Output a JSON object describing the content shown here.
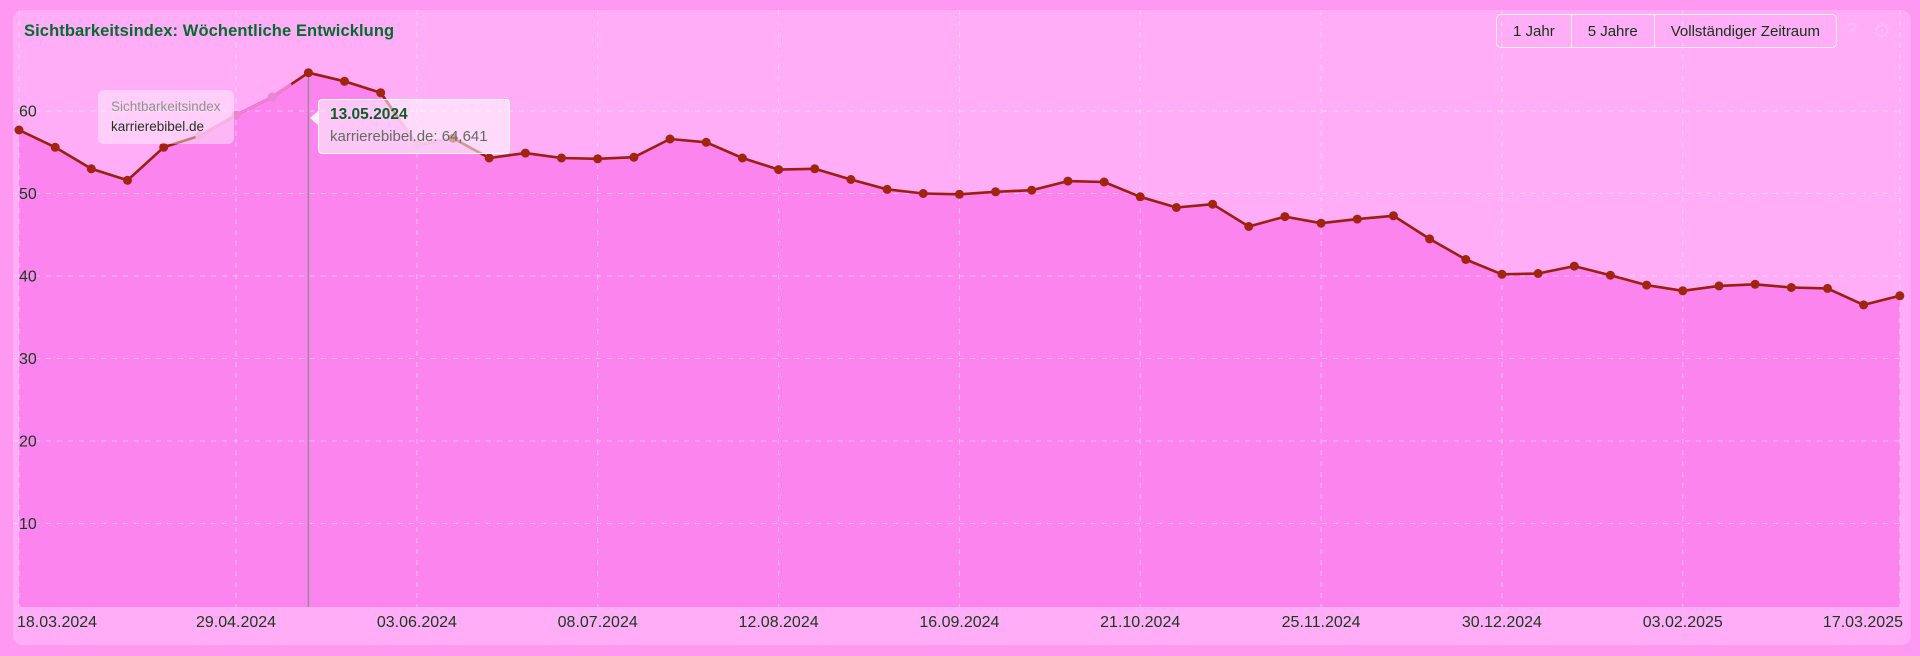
{
  "title": "Sichtbarkeitsindex: Wöchentliche Entwicklung",
  "toolbar": {
    "range_buttons": [
      "1 Jahr",
      "5 Jahre",
      "Vollständiger Zeitraum"
    ],
    "help_icon": "?",
    "gear_icon": "⚙"
  },
  "legend": {
    "metric": "Sichtbarkeitsindex",
    "domain": "karrierebibel.de"
  },
  "tooltip": {
    "date": "13.05.2024",
    "domain": "karrierebibel.de",
    "value": "64,641",
    "text": "karrierebibel.de: 64,641"
  },
  "colors": {
    "page_background": "#fe98f1",
    "card_background": "#ffadf7",
    "area_fill": "#fb84ee",
    "line": "#9b1f0e",
    "dot": "#a02410",
    "highlight_line": "#f07fd6",
    "highlight_dot": "#ee85d2",
    "grid": "rgba(255,255,255,0.45)",
    "selection_line": "#8f8f8f",
    "axis_text": "#173a1d",
    "title_text": "#066b31"
  },
  "chart_data": {
    "type": "line",
    "title": "Sichtbarkeitsindex: Wöchentliche Entwicklung",
    "series_name": "karrierebibel.de",
    "metric": "Sichtbarkeitsindex",
    "x_interval": "weekly",
    "x_tick_labels": [
      "18.03.2024",
      "29.04.2024",
      "03.06.2024",
      "08.07.2024",
      "12.08.2024",
      "16.09.2024",
      "21.10.2024",
      "25.11.2024",
      "30.12.2024",
      "03.02.2025",
      "17.03.2025"
    ],
    "x_tick_weeks": [
      0,
      6,
      11,
      16,
      21,
      26,
      31,
      36,
      41,
      46,
      52
    ],
    "y_ticks": [
      10,
      20,
      30,
      40,
      50,
      60
    ],
    "ylim": [
      3,
      66
    ],
    "grid": "dashed",
    "legend_position": "top-left",
    "values": [
      57.7,
      55.6,
      53.0,
      51.6,
      55.6,
      57.0,
      59.5,
      61.7,
      64.64,
      63.6,
      62.2,
      55.9,
      56.7,
      54.3,
      54.9,
      54.3,
      54.2,
      54.4,
      56.6,
      56.2,
      54.3,
      52.9,
      53.0,
      51.7,
      50.5,
      50.0,
      49.9,
      50.2,
      50.4,
      51.5,
      51.4,
      49.6,
      48.3,
      48.7,
      46.0,
      47.2,
      46.4,
      46.9,
      47.3,
      44.5,
      42.0,
      40.2,
      40.3,
      41.2,
      40.1,
      38.9,
      38.2,
      38.8,
      39.0,
      38.6,
      38.5,
      36.5,
      37.6
    ],
    "selected_point": {
      "week_index": 8,
      "date": "13.05.2024",
      "value_label": "64,641"
    },
    "highlight": {
      "pink_dot_weeks": [
        5,
        6,
        7,
        11
      ],
      "pink_segments": [
        [
          5,
          7.5
        ],
        [
          10.5,
          12
        ]
      ]
    }
  }
}
